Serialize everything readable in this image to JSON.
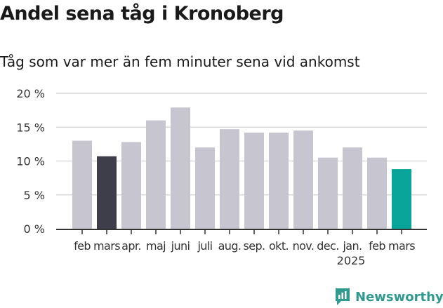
{
  "title": "Andel sena tåg i Kronoberg",
  "subtitle": "Tåg som var mer än fem minuter sena vid ankomst",
  "brand": "Newsworthy",
  "colors": {
    "bar_default": "#c6c5d0",
    "bar_highlight_prev": "#3e3d4a",
    "bar_highlight_current": "#0aa59a",
    "grid": "#d9d9d9",
    "axis": "#333333",
    "brand": "#2f9a90"
  },
  "chart_data": {
    "type": "bar",
    "categories": [
      "feb",
      "mars",
      "apr.",
      "maj",
      "juni",
      "juli",
      "aug.",
      "sep.",
      "okt.",
      "nov.",
      "dec.",
      "jan.",
      "feb",
      "mars"
    ],
    "year_label": "2025",
    "year_label_under": "jan.",
    "values": [
      13.0,
      10.7,
      12.8,
      16.0,
      17.9,
      12.0,
      14.7,
      14.2,
      14.2,
      14.5,
      10.5,
      12.0,
      10.5,
      8.8
    ],
    "highlight": {
      "1": "bar_highlight_prev",
      "13": "bar_highlight_current"
    },
    "yticks": [
      "0 %",
      "5 %",
      "10 %",
      "15 %",
      "20 %"
    ],
    "ytick_values": [
      0,
      5,
      10,
      15,
      20
    ],
    "ylim": [
      0,
      20
    ],
    "grid": true,
    "xlabel": "",
    "ylabel": ""
  }
}
